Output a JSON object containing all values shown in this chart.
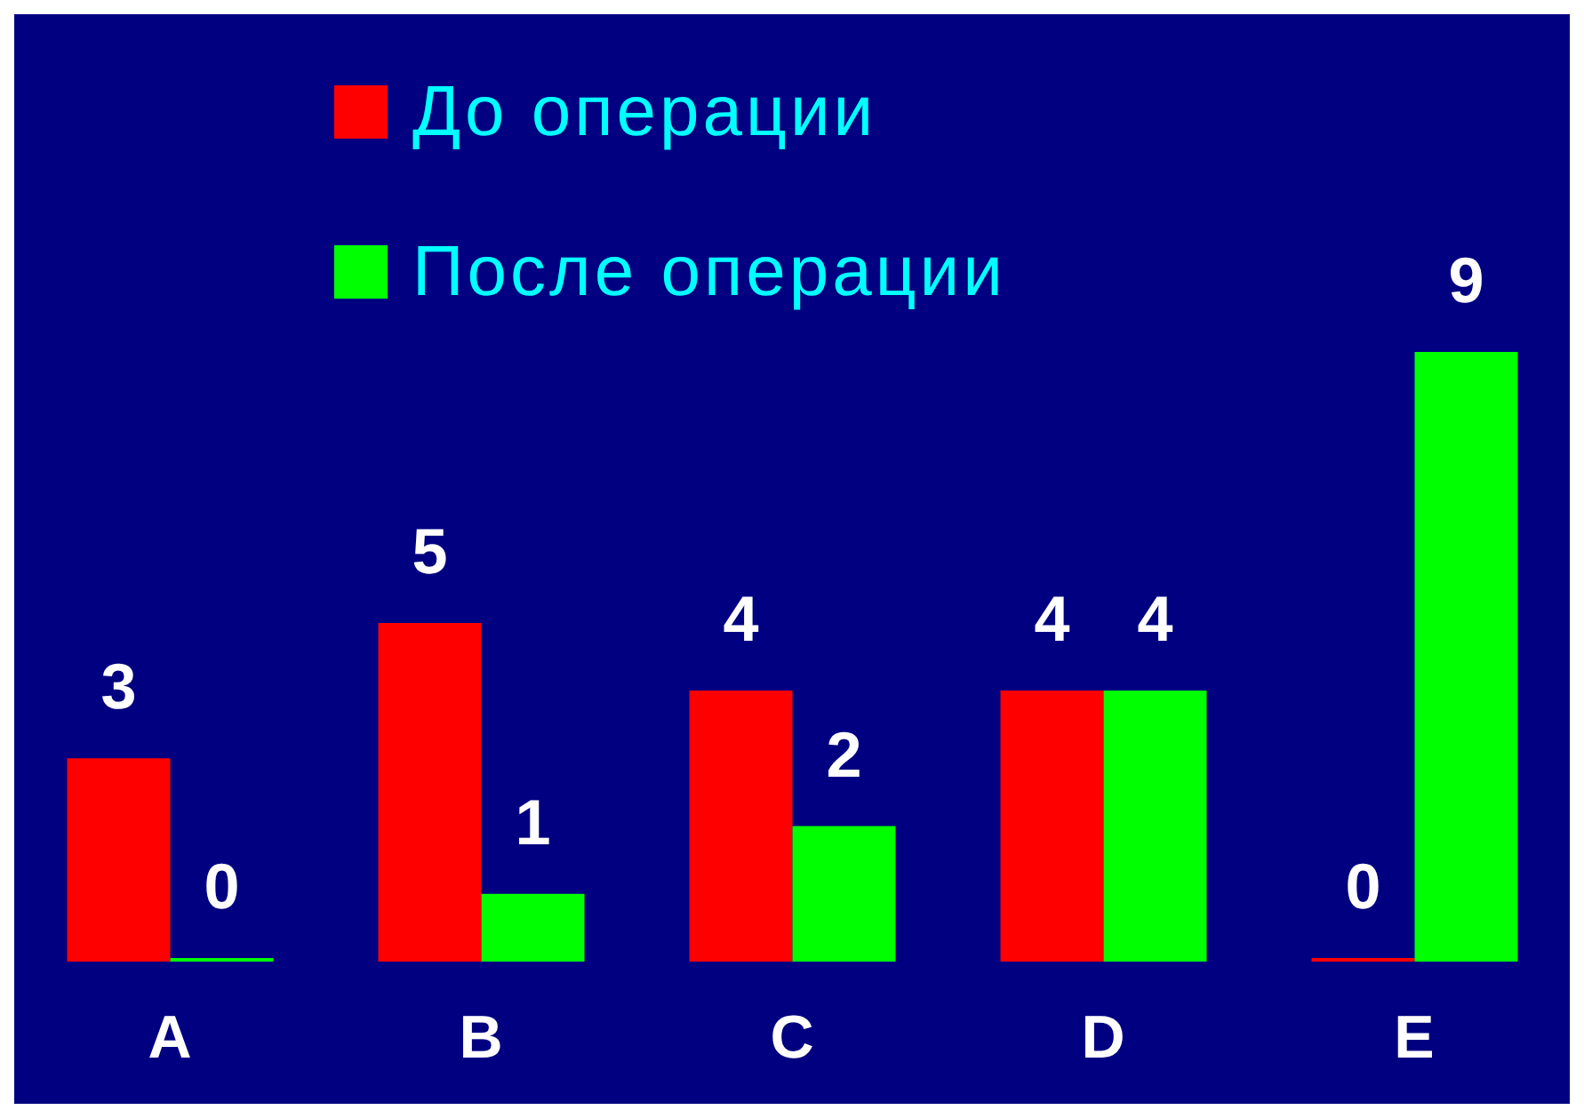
{
  "chart_data": {
    "type": "bar",
    "categories": [
      "A",
      "B",
      "C",
      "D",
      "E"
    ],
    "series": [
      {
        "name": "До операции",
        "color": "#ff0000",
        "values": [
          3,
          5,
          4,
          4,
          0
        ]
      },
      {
        "name": "После операции",
        "color": "#00ff00",
        "values": [
          0,
          1,
          2,
          4,
          9
        ]
      }
    ],
    "data_labels": true,
    "legend": "top",
    "grid": false
  }
}
